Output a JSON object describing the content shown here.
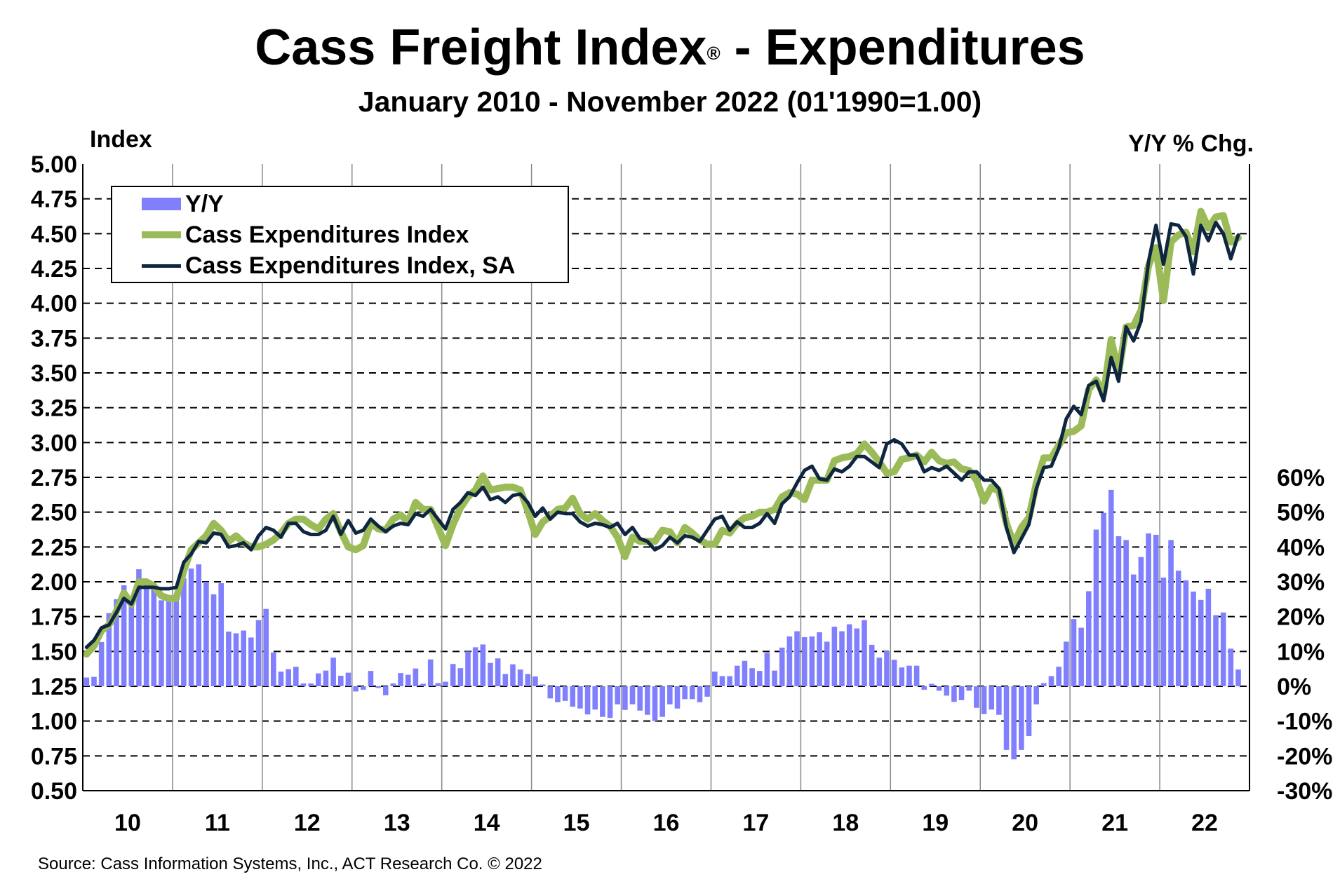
{
  "title": {
    "main": "Cass Freight Index",
    "reg": "®",
    "rest": " - Expenditures"
  },
  "subtitle": "January 2010 - November 2022 (01'1990=1.00)",
  "left_axis_title": "Index",
  "right_axis_title": "Y/Y % Chg.",
  "source": "Source: Cass Information Systems, Inc., ACT Research Co. © 2022",
  "colors": {
    "yy": "#8080ff",
    "nsa": "#9bbb59",
    "sa": "#0f2640"
  },
  "legend": [
    "Y/Y",
    "Cass Expenditures Index",
    "Cass Expenditures Index, SA"
  ],
  "chart_data": {
    "type": "bar+line",
    "x_start": "2010-01",
    "x_end": "2022-11",
    "frequency": "monthly",
    "x_tick_labels": [
      "10",
      "11",
      "12",
      "13",
      "14",
      "15",
      "16",
      "17",
      "18",
      "19",
      "20",
      "21",
      "22"
    ],
    "left_axis": {
      "label": "Index",
      "ylim": [
        0.5,
        5.0
      ],
      "ticks": [
        "5.00",
        "4.75",
        "4.50",
        "4.25",
        "4.00",
        "3.75",
        "3.50",
        "3.25",
        "3.00",
        "2.75",
        "2.50",
        "2.25",
        "2.00",
        "1.75",
        "1.50",
        "1.25",
        "1.00",
        "0.75",
        "0.50"
      ]
    },
    "right_axis": {
      "label": "Y/Y % Chg.",
      "ylim": [
        -30,
        60
      ],
      "ticks": [
        "60%",
        "50%",
        "40%",
        "30%",
        "20%",
        "10%",
        "0%",
        "-10%",
        "-20%",
        "-30%"
      ]
    },
    "grid": "dashed horizontal, solid vertical at years",
    "legend_position": "top-left",
    "series": [
      {
        "name": "Y/Y",
        "type": "bar",
        "axis": "right",
        "values": [
          2.5,
          2.7,
          12.7,
          21,
          25,
          29,
          23,
          33.6,
          29.5,
          29,
          24.7,
          25.1,
          25,
          31,
          33.8,
          35,
          30,
          26.4,
          29.6,
          15.7,
          15.2,
          16,
          14,
          19,
          22.2,
          9.7,
          4.2,
          4.9,
          5.6,
          0.8,
          0.8,
          3.7,
          4.5,
          8.2,
          3,
          3.9,
          -1.5,
          -1,
          4.4,
          -0.5,
          -2.6,
          0.8,
          3.8,
          3.3,
          5.1,
          0.7,
          7.7,
          0.9,
          1.3,
          6.4,
          5.2,
          10,
          11.2,
          12,
          6.7,
          8,
          3.5,
          6.3,
          4.8,
          3.5,
          2.8,
          0.5,
          -3.5,
          -4.6,
          -4.2,
          -5.9,
          -6.4,
          -8.1,
          -6.7,
          -8.8,
          -9.1,
          -5.2,
          -6.8,
          -5.2,
          -7,
          -8.2,
          -10,
          -8.8,
          -5.2,
          -6.4,
          -3.7,
          -3.7,
          -4.6,
          -3,
          4.2,
          2.9,
          2.9,
          5.9,
          7.3,
          5.2,
          4.4,
          9.6,
          4.5,
          11.1,
          14.3,
          15.8,
          14.1,
          14.3,
          15.5,
          12.8,
          17.1,
          15.8,
          17.8,
          16.6,
          19,
          11.9,
          8.2,
          10.1,
          7.6,
          5.4,
          5.9,
          5.9,
          -1,
          0.7,
          -1.3,
          -2.7,
          -4.5,
          -4,
          -1.3,
          -6.2,
          -8,
          -6.7,
          -8.2,
          -18.3,
          -21,
          -18.3,
          -14.3,
          -5.2,
          0.9,
          2.9,
          5.6,
          12.8,
          19.3,
          16.8,
          27.3,
          45,
          49.8,
          56.4,
          43.1,
          42,
          32.1,
          37.1,
          43.9,
          43.5,
          31.2,
          42,
          33.2,
          30.4,
          27.2,
          24.8,
          28,
          20.4,
          21.2,
          10.8,
          4.8
        ]
      },
      {
        "name": "Cass Expenditures Index",
        "type": "line",
        "axis": "left",
        "values": [
          1.48,
          1.54,
          1.65,
          1.69,
          1.79,
          1.92,
          1.84,
          2.0,
          2.0,
          1.97,
          1.9,
          1.88,
          1.88,
          2.08,
          2.23,
          2.28,
          2.33,
          2.42,
          2.37,
          2.29,
          2.33,
          2.28,
          2.25,
          2.25,
          2.27,
          2.3,
          2.35,
          2.42,
          2.45,
          2.45,
          2.41,
          2.38,
          2.45,
          2.49,
          2.36,
          2.25,
          2.23,
          2.26,
          2.42,
          2.38,
          2.37,
          2.45,
          2.48,
          2.43,
          2.57,
          2.52,
          2.52,
          2.39,
          2.26,
          2.41,
          2.53,
          2.61,
          2.66,
          2.76,
          2.66,
          2.67,
          2.68,
          2.68,
          2.66,
          2.51,
          2.34,
          2.43,
          2.47,
          2.52,
          2.53,
          2.6,
          2.49,
          2.45,
          2.49,
          2.44,
          2.4,
          2.32,
          2.18,
          2.32,
          2.29,
          2.29,
          2.29,
          2.37,
          2.36,
          2.28,
          2.39,
          2.35,
          2.3,
          2.27,
          2.27,
          2.37,
          2.35,
          2.42,
          2.46,
          2.47,
          2.5,
          2.5,
          2.52,
          2.61,
          2.64,
          2.63,
          2.59,
          2.73,
          2.73,
          2.73,
          2.87,
          2.89,
          2.9,
          2.92,
          2.99,
          2.93,
          2.86,
          2.78,
          2.79,
          2.88,
          2.89,
          2.91,
          2.86,
          2.93,
          2.87,
          2.85,
          2.86,
          2.81,
          2.8,
          2.73,
          2.58,
          2.68,
          2.65,
          2.42,
          2.27,
          2.39,
          2.46,
          2.71,
          2.89,
          2.89,
          2.98,
          3.07,
          3.08,
          3.12,
          3.38,
          3.45,
          3.35,
          3.74,
          3.5,
          3.83,
          3.84,
          3.95,
          4.27,
          4.4,
          4.02,
          4.44,
          4.49,
          4.51,
          4.37,
          4.66,
          4.54,
          4.62,
          4.63,
          4.44,
          4.47
        ]
      },
      {
        "name": "Cass Expenditures Index, SA",
        "type": "line",
        "axis": "left",
        "values": [
          1.53,
          1.58,
          1.67,
          1.69,
          1.78,
          1.88,
          1.84,
          1.96,
          1.96,
          1.96,
          1.95,
          1.95,
          1.96,
          2.14,
          2.2,
          2.29,
          2.28,
          2.35,
          2.34,
          2.25,
          2.26,
          2.28,
          2.23,
          2.33,
          2.39,
          2.37,
          2.32,
          2.42,
          2.42,
          2.36,
          2.34,
          2.34,
          2.37,
          2.47,
          2.34,
          2.44,
          2.35,
          2.37,
          2.45,
          2.4,
          2.36,
          2.4,
          2.42,
          2.41,
          2.49,
          2.47,
          2.52,
          2.45,
          2.38,
          2.52,
          2.57,
          2.64,
          2.62,
          2.68,
          2.59,
          2.61,
          2.57,
          2.62,
          2.63,
          2.57,
          2.47,
          2.53,
          2.45,
          2.5,
          2.49,
          2.49,
          2.43,
          2.4,
          2.42,
          2.41,
          2.39,
          2.42,
          2.34,
          2.39,
          2.31,
          2.29,
          2.23,
          2.26,
          2.32,
          2.28,
          2.33,
          2.32,
          2.29,
          2.37,
          2.45,
          2.47,
          2.37,
          2.43,
          2.39,
          2.39,
          2.42,
          2.49,
          2.42,
          2.56,
          2.61,
          2.71,
          2.8,
          2.83,
          2.74,
          2.73,
          2.81,
          2.79,
          2.83,
          2.9,
          2.9,
          2.86,
          2.82,
          2.99,
          3.02,
          2.99,
          2.91,
          2.91,
          2.79,
          2.82,
          2.8,
          2.83,
          2.78,
          2.73,
          2.79,
          2.79,
          2.73,
          2.73,
          2.67,
          2.39,
          2.21,
          2.31,
          2.41,
          2.67,
          2.82,
          2.83,
          2.96,
          3.17,
          3.26,
          3.2,
          3.41,
          3.44,
          3.3,
          3.61,
          3.44,
          3.83,
          3.73,
          3.87,
          4.3,
          4.56,
          4.28,
          4.57,
          4.56,
          4.48,
          4.21,
          4.56,
          4.45,
          4.58,
          4.5,
          4.32,
          4.49
        ]
      }
    ]
  }
}
